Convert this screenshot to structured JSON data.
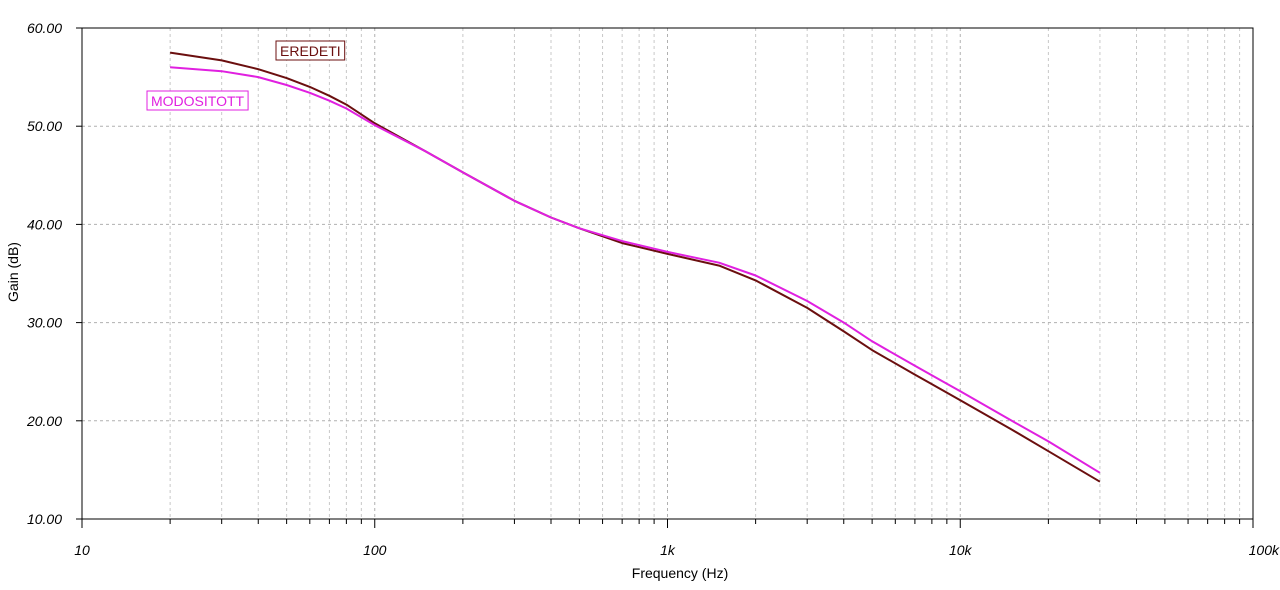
{
  "chart_data": {
    "type": "line",
    "xlabel": "Frequency (Hz)",
    "ylabel": "Gain (dB)",
    "xscale": "log",
    "xlim": [
      10,
      100000
    ],
    "ylim": [
      10,
      60
    ],
    "grid": true,
    "x_ticks": [
      {
        "value": 10,
        "label": "10"
      },
      {
        "value": 100,
        "label": "100"
      },
      {
        "value": 1000,
        "label": "1k"
      },
      {
        "value": 10000,
        "label": "10k"
      },
      {
        "value": 100000,
        "label": "100k"
      }
    ],
    "y_ticks": [
      {
        "value": 10,
        "label": "10.00"
      },
      {
        "value": 20,
        "label": "20.00"
      },
      {
        "value": 30,
        "label": "30.00"
      },
      {
        "value": 40,
        "label": "40.00"
      },
      {
        "value": 50,
        "label": "50.00"
      },
      {
        "value": 60,
        "label": "60.00"
      }
    ],
    "series": [
      {
        "name": "EREDETI",
        "color": "#6b0f0f",
        "x": [
          20,
          30,
          40,
          50,
          60,
          70,
          80,
          100,
          150,
          200,
          300,
          400,
          500,
          700,
          1000,
          1500,
          2000,
          3000,
          4000,
          5000,
          7000,
          10000,
          15000,
          20000,
          30000
        ],
        "y": [
          57.5,
          56.7,
          55.8,
          54.9,
          54.0,
          53.1,
          52.2,
          50.3,
          47.4,
          45.3,
          42.4,
          40.7,
          39.6,
          38.1,
          37.0,
          35.8,
          34.3,
          31.5,
          29.1,
          27.2,
          24.7,
          22.1,
          19.1,
          16.9,
          13.8
        ]
      },
      {
        "name": "MODOSITOTT",
        "color": "#e020e0",
        "x": [
          20,
          30,
          40,
          50,
          60,
          70,
          80,
          100,
          150,
          200,
          300,
          400,
          500,
          700,
          1000,
          1500,
          2000,
          3000,
          4000,
          5000,
          7000,
          10000,
          15000,
          20000,
          30000
        ],
        "y": [
          56.0,
          55.6,
          55.0,
          54.2,
          53.4,
          52.6,
          51.8,
          50.1,
          47.4,
          45.3,
          42.4,
          40.7,
          39.6,
          38.3,
          37.2,
          36.1,
          34.8,
          32.2,
          30.0,
          28.1,
          25.6,
          23.0,
          20.0,
          17.9,
          14.7
        ]
      }
    ],
    "legend_labels": [
      {
        "series": "EREDETI",
        "placement": "upper-left, above curve"
      },
      {
        "series": "MODOSITOTT",
        "placement": "upper-left, below curve"
      }
    ]
  }
}
